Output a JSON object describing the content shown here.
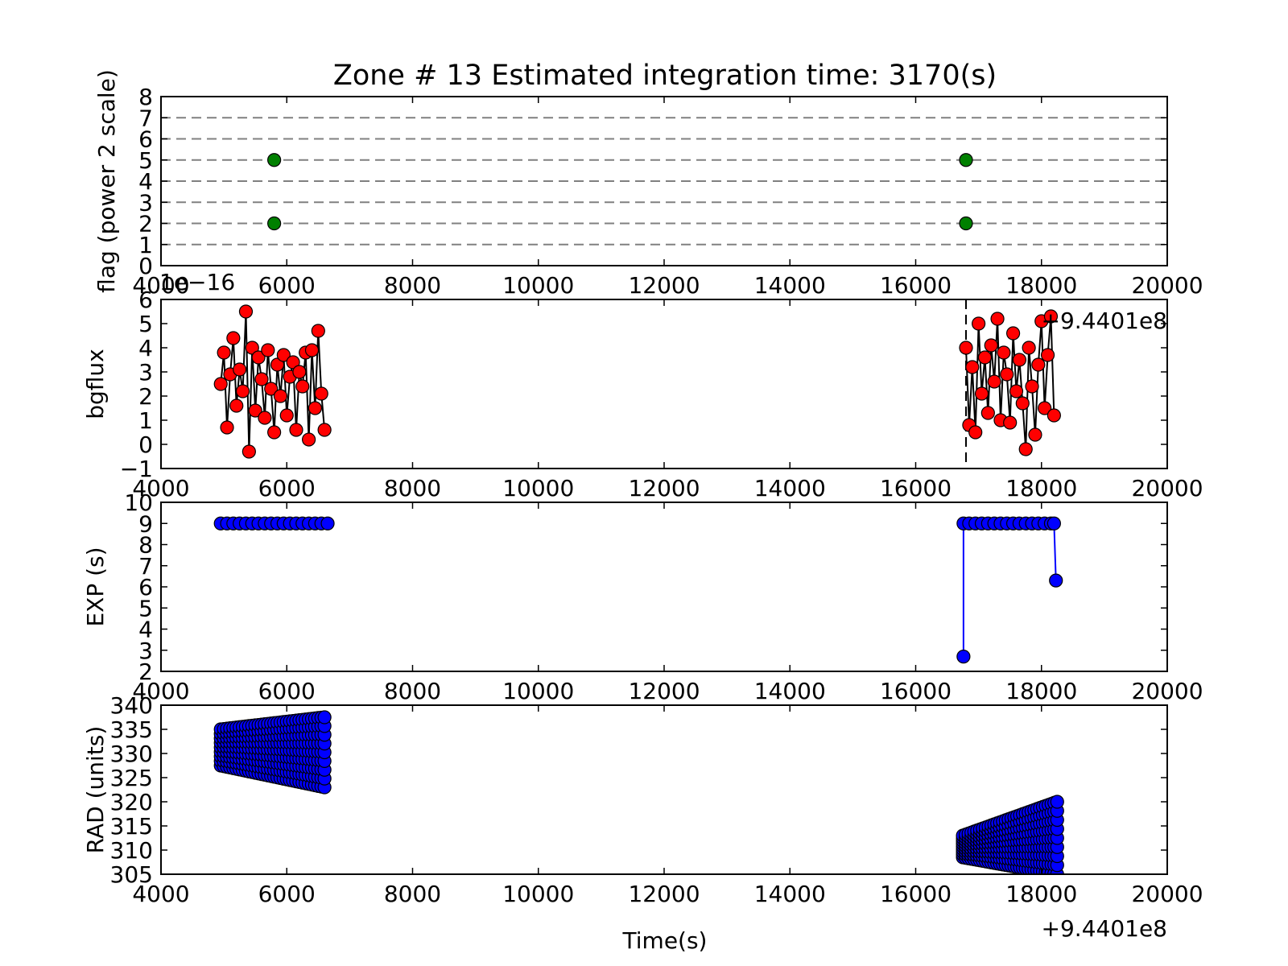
{
  "chart_data": [
    {
      "type": "scatter",
      "title": "Zone # 13 Estimated integration time: 3170(s)",
      "xlabel": "",
      "ylabel": "flag (power 2 scale)",
      "xlim": [
        4000,
        20000
      ],
      "ylim": [
        0,
        8
      ],
      "x_ticks": [
        "4000",
        "6000",
        "8000",
        "10000",
        "12000",
        "14000",
        "16000",
        "18000",
        "20000"
      ],
      "y_ticks": [
        "0",
        "1",
        "2",
        "3",
        "4",
        "5",
        "6",
        "7",
        "8"
      ],
      "hlines": [
        1,
        2,
        3,
        4,
        5,
        6,
        7
      ],
      "grid": false,
      "marker_color": "#008000",
      "line_color": "#808080",
      "series": [
        {
          "x": [
            5800,
            5800,
            16800,
            16800
          ],
          "y": [
            5,
            2,
            5,
            2
          ]
        }
      ]
    },
    {
      "type": "line",
      "ylabel": "bgflux",
      "xlim": [
        4000,
        20000
      ],
      "ylim": [
        -1,
        6
      ],
      "y_scale_label": "1e−16",
      "x_offset_label": "+9.4401e8",
      "x_ticks": [
        "4000",
        "6000",
        "8000",
        "10000",
        "12000",
        "14000",
        "16000",
        "18000",
        "20000"
      ],
      "y_ticks": [
        "−1",
        "0",
        "1",
        "2",
        "3",
        "4",
        "5",
        "6"
      ],
      "vline_x": 16800,
      "marker_color": "#ff0000",
      "line_color": "#000000",
      "series": [
        {
          "x": [
            4950,
            5000,
            5050,
            5100,
            5150,
            5200,
            5250,
            5300,
            5350,
            5400,
            5450,
            5500,
            5550,
            5600,
            5650,
            5700,
            5750,
            5800,
            5850,
            5900,
            5950,
            6000,
            6050,
            6100,
            6150,
            6200,
            6250,
            6300,
            6350,
            6400,
            6450,
            6500,
            6550,
            6600
          ],
          "y": [
            2.5,
            3.8,
            0.7,
            2.9,
            4.4,
            1.6,
            3.1,
            2.2,
            5.5,
            -0.3,
            4.0,
            1.4,
            3.6,
            2.7,
            1.1,
            3.9,
            2.3,
            0.5,
            3.3,
            2.0,
            3.7,
            1.2,
            2.8,
            3.4,
            0.6,
            3.0,
            2.4,
            3.8,
            0.2,
            3.9,
            1.5,
            4.7,
            2.1,
            0.6
          ]
        },
        {
          "x": [
            16800,
            16850,
            16900,
            16950,
            17000,
            17050,
            17100,
            17150,
            17200,
            17250,
            17300,
            17350,
            17400,
            17450,
            17500,
            17550,
            17600,
            17650,
            17700,
            17750,
            17800,
            17850,
            17900,
            17950,
            18000,
            18050,
            18100,
            18150,
            18200
          ],
          "y": [
            4.0,
            0.8,
            3.2,
            0.5,
            5.0,
            2.1,
            3.6,
            1.3,
            4.1,
            2.6,
            5.2,
            1.0,
            3.8,
            2.9,
            0.9,
            4.6,
            2.2,
            3.5,
            1.7,
            -0.2,
            4.0,
            2.4,
            0.4,
            3.3,
            5.1,
            1.5,
            3.7,
            5.3,
            1.2
          ]
        }
      ]
    },
    {
      "type": "line",
      "ylabel": "EXP (s)",
      "xlim": [
        4000,
        20000
      ],
      "ylim": [
        2,
        10
      ],
      "x_ticks": [
        "4000",
        "6000",
        "8000",
        "10000",
        "12000",
        "14000",
        "16000",
        "18000",
        "20000"
      ],
      "y_ticks": [
        "2",
        "3",
        "4",
        "5",
        "6",
        "7",
        "8",
        "9",
        "10"
      ],
      "marker_color": "#0000ff",
      "line_color": "#0000ff",
      "series": [
        {
          "x": [
            4950,
            5050,
            5150,
            5250,
            5350,
            5450,
            5550,
            5650,
            5750,
            5850,
            5950,
            6050,
            6150,
            6250,
            6350,
            6450,
            6550,
            6650
          ],
          "y": [
            9,
            9,
            9,
            9,
            9,
            9,
            9,
            9,
            9,
            9,
            9,
            9,
            9,
            9,
            9,
            9,
            9,
            9
          ]
        },
        {
          "x": [
            16760,
            16760,
            16850,
            16950,
            17050,
            17150,
            17250,
            17350,
            17450,
            17550,
            17650,
            17750,
            17850,
            17950,
            18050,
            18150,
            18200,
            18230
          ],
          "y": [
            2.7,
            9,
            9,
            9,
            9,
            9,
            9,
            9,
            9,
            9,
            9,
            9,
            9,
            9,
            9,
            9,
            9,
            6.3
          ]
        }
      ]
    },
    {
      "type": "scatter",
      "ylabel": "RAD (units)",
      "xlabel": "Time(s)",
      "xlim": [
        4000,
        20000
      ],
      "ylim": [
        305,
        340
      ],
      "x_offset_label": "+9.4401e8",
      "x_ticks": [
        "4000",
        "6000",
        "8000",
        "10000",
        "12000",
        "14000",
        "16000",
        "18000",
        "20000"
      ],
      "y_ticks": [
        "305",
        "310",
        "315",
        "320",
        "325",
        "330",
        "335",
        "340"
      ],
      "marker_color": "#0000ff",
      "series": [
        {
          "x_range": [
            4950,
            6600
          ],
          "y_top": [
            335,
            337.5
          ],
          "y_bottom": [
            327.5,
            323
          ]
        },
        {
          "x_range": [
            16750,
            18250
          ],
          "y_top": [
            313,
            320
          ],
          "y_bottom": [
            308.5,
            305
          ]
        }
      ]
    }
  ]
}
